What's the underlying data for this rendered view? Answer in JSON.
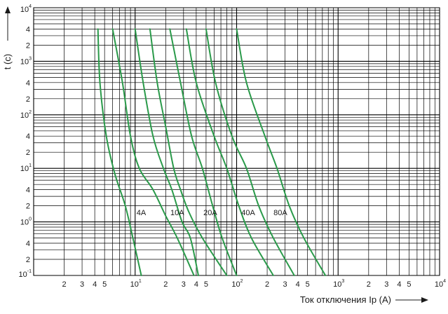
{
  "chart_data": {
    "type": "line",
    "title": "",
    "xlabel": "Ток отключения Ip (A)",
    "ylabel": "t (c)",
    "x_scale": "log",
    "y_scale": "log",
    "xlim": [
      1,
      10000
    ],
    "ylim": [
      0.1,
      10000
    ],
    "grid": true,
    "line_color": "#2a9a4a",
    "x_ticks": [
      {
        "v": 2,
        "base": "2",
        "exp": ""
      },
      {
        "v": 3,
        "base": "3",
        "exp": ""
      },
      {
        "v": 4,
        "base": "4",
        "exp": ""
      },
      {
        "v": 5,
        "base": "5",
        "exp": ""
      },
      {
        "v": 10,
        "base": "10",
        "exp": "1"
      },
      {
        "v": 20,
        "base": "2",
        "exp": ""
      },
      {
        "v": 30,
        "base": "3",
        "exp": ""
      },
      {
        "v": 40,
        "base": "4",
        "exp": ""
      },
      {
        "v": 50,
        "base": "5",
        "exp": ""
      },
      {
        "v": 100,
        "base": "10",
        "exp": "2"
      },
      {
        "v": 200,
        "base": "2",
        "exp": ""
      },
      {
        "v": 300,
        "base": "3",
        "exp": ""
      },
      {
        "v": 400,
        "base": "4",
        "exp": ""
      },
      {
        "v": 500,
        "base": "5",
        "exp": ""
      },
      {
        "v": 1000,
        "base": "10",
        "exp": "3"
      },
      {
        "v": 2000,
        "base": "2",
        "exp": ""
      },
      {
        "v": 3000,
        "base": "3",
        "exp": ""
      },
      {
        "v": 4000,
        "base": "4",
        "exp": ""
      },
      {
        "v": 5000,
        "base": "5",
        "exp": ""
      },
      {
        "v": 10000,
        "base": "10",
        "exp": "4"
      }
    ],
    "y_ticks": [
      {
        "v": 0.1,
        "base": "10",
        "exp": "-1"
      },
      {
        "v": 0.2,
        "base": "2",
        "exp": ""
      },
      {
        "v": 0.4,
        "base": "4",
        "exp": ""
      },
      {
        "v": 1,
        "base": "10",
        "exp": "0"
      },
      {
        "v": 2,
        "base": "2",
        "exp": ""
      },
      {
        "v": 4,
        "base": "4",
        "exp": ""
      },
      {
        "v": 10,
        "base": "10",
        "exp": "1"
      },
      {
        "v": 20,
        "base": "2",
        "exp": ""
      },
      {
        "v": 40,
        "base": "4",
        "exp": ""
      },
      {
        "v": 100,
        "base": "10",
        "exp": "2"
      },
      {
        "v": 200,
        "base": "2",
        "exp": ""
      },
      {
        "v": 400,
        "base": "4",
        "exp": ""
      },
      {
        "v": 1000,
        "base": "10",
        "exp": "3"
      },
      {
        "v": 2000,
        "base": "2",
        "exp": ""
      },
      {
        "v": 4000,
        "base": "4",
        "exp": ""
      },
      {
        "v": 10000,
        "base": "10",
        "exp": "4"
      }
    ],
    "labels": [
      {
        "text": "4A",
        "x": 11.5,
        "y": 1.5
      },
      {
        "text": "10A",
        "x": 26,
        "y": 1.5
      },
      {
        "text": "20A",
        "x": 55,
        "y": 1.5
      },
      {
        "text": "40A",
        "x": 130,
        "y": 1.5
      },
      {
        "text": "80A",
        "x": 270,
        "y": 1.5
      }
    ],
    "series": [
      {
        "name": "",
        "points": [
          [
            4.3,
            4000
          ],
          [
            4.5,
            400
          ],
          [
            5.2,
            40
          ],
          [
            6.3,
            8
          ],
          [
            8,
            2
          ],
          [
            9.5,
            0.5
          ],
          [
            11.5,
            0.1
          ]
        ]
      },
      {
        "name": "",
        "points": [
          [
            6,
            4000
          ],
          [
            7.5,
            400
          ],
          [
            9,
            40
          ],
          [
            11,
            10
          ],
          [
            15,
            4
          ],
          [
            20,
            1.3
          ],
          [
            26,
            0.5
          ],
          [
            38,
            0.1
          ]
        ]
      },
      {
        "name": "",
        "points": [
          [
            10,
            4000
          ],
          [
            12,
            400
          ],
          [
            15,
            40
          ],
          [
            19,
            10
          ],
          [
            23,
            4
          ],
          [
            29,
            1
          ],
          [
            35,
            0.5
          ],
          [
            42,
            0.1
          ]
        ]
      },
      {
        "name": "",
        "points": [
          [
            14,
            4000
          ],
          [
            16.5,
            400
          ],
          [
            20,
            60
          ],
          [
            24,
            10
          ],
          [
            28,
            4
          ],
          [
            34,
            1.5
          ],
          [
            46,
            0.5
          ],
          [
            80,
            0.1
          ]
        ]
      },
      {
        "name": "",
        "points": [
          [
            22,
            4000
          ],
          [
            28,
            400
          ],
          [
            36,
            40
          ],
          [
            46,
            10
          ],
          [
            58,
            2
          ],
          [
            72,
            0.5
          ],
          [
            100,
            0.1
          ]
        ]
      },
      {
        "name": "",
        "points": [
          [
            32,
            4000
          ],
          [
            40,
            400
          ],
          [
            60,
            40
          ],
          [
            80,
            10
          ],
          [
            105,
            2
          ],
          [
            140,
            0.5
          ],
          [
            230,
            0.1
          ]
        ]
      },
      {
        "name": "",
        "points": [
          [
            50,
            4000
          ],
          [
            62,
            400
          ],
          [
            90,
            40
          ],
          [
            125,
            10
          ],
          [
            165,
            2
          ],
          [
            230,
            0.5
          ],
          [
            370,
            0.1
          ]
        ]
      },
      {
        "name": "",
        "points": [
          [
            100,
            4000
          ],
          [
            125,
            400
          ],
          [
            190,
            40
          ],
          [
            250,
            10
          ],
          [
            330,
            2
          ],
          [
            460,
            0.5
          ],
          [
            750,
            0.1
          ]
        ]
      }
    ]
  }
}
